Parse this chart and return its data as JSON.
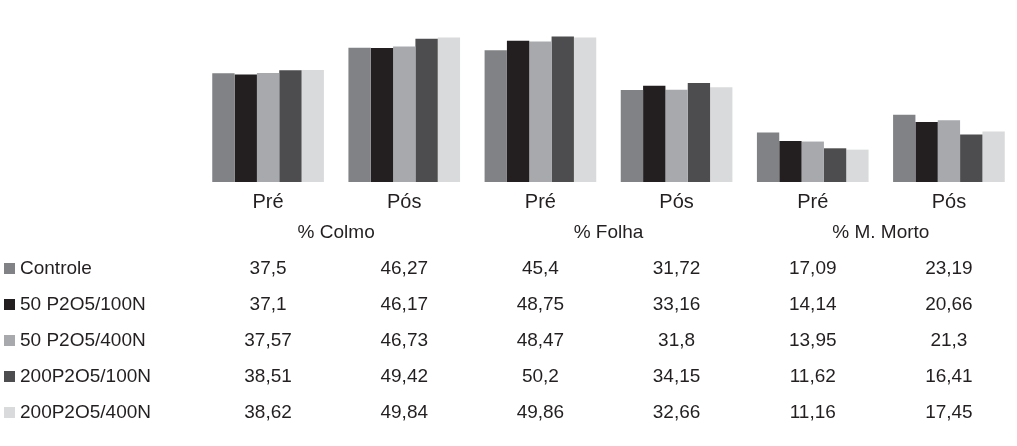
{
  "chart_data": {
    "type": "bar",
    "categories": [
      "Pré",
      "Pós",
      "Pré",
      "Pós",
      "Pré",
      "Pós"
    ],
    "annotations": [
      "% Colmo",
      "% Folha",
      "% M. Morto"
    ],
    "grid": false,
    "legend": "bottom left",
    "series": [
      {
        "name": "Controle",
        "color": "#808285",
        "values": [
          37.5,
          46.27,
          45.4,
          31.72,
          17.09,
          23.19
        ],
        "value_labels": [
          "37,5",
          "46,27",
          "45,4",
          "31,72",
          "17,09",
          "23,19"
        ]
      },
      {
        "name": "50 P2O5/100N",
        "color": "#231f20",
        "values": [
          37.1,
          46.17,
          48.75,
          33.16,
          14.14,
          20.66
        ],
        "value_labels": [
          "37,1",
          "46,17",
          "48,75",
          "33,16",
          "14,14",
          "20,66"
        ]
      },
      {
        "name": "50 P2O5/400N",
        "color": "#a7a9ac",
        "values": [
          37.57,
          46.73,
          48.47,
          31.8,
          13.95,
          21.3
        ],
        "value_labels": [
          "37,57",
          "46,73",
          "48,47",
          "31,8",
          "13,95",
          "21,3"
        ]
      },
      {
        "name": "200P2O5/100N",
        "color": "#4d4d4f",
        "values": [
          38.51,
          49.42,
          50.2,
          34.15,
          11.62,
          16.41
        ],
        "value_labels": [
          "38,51",
          "49,42",
          "50,2",
          "34,15",
          "11,62",
          "16,41"
        ]
      },
      {
        "name": "200P2O5/400N",
        "color": "#d9dadb",
        "values": [
          38.62,
          49.84,
          49.86,
          32.66,
          11.16,
          17.45
        ],
        "value_labels": [
          "38,62",
          "49,84",
          "49,86",
          "32,66",
          "11,16",
          "17,45"
        ]
      }
    ]
  }
}
